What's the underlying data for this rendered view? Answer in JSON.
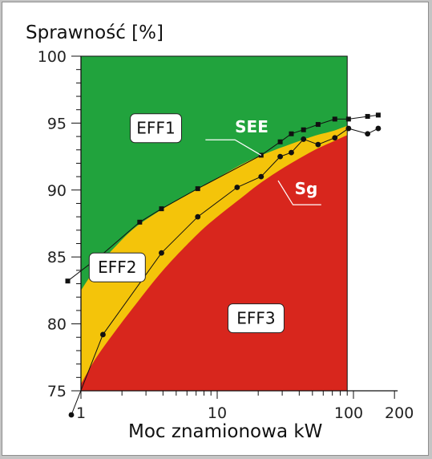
{
  "chart_data": {
    "type": "line",
    "ylabel": "Sprawność [%]",
    "xlabel": "Moc znamionowa kW",
    "xscale": "log",
    "xlim": [
      1,
      200
    ],
    "ylim": [
      75,
      100
    ],
    "x_ticks": [
      1,
      10,
      100,
      200
    ],
    "y_ticks": [
      75,
      80,
      85,
      90,
      95,
      100
    ],
    "colors": {
      "EFF1": "#21a33d",
      "EFF2": "#f4c40a",
      "EFF3": "#d8261d",
      "axis": "#111111",
      "series": "#111111"
    },
    "regions": [
      {
        "name": "EFF1"
      },
      {
        "name": "EFF2"
      },
      {
        "name": "EFF3"
      }
    ],
    "boundaries": {
      "eff1_eff2": {
        "x": [
          1.0,
          1.3,
          1.8,
          2.5,
          4,
          7,
          10,
          15,
          20,
          30,
          50,
          70,
          90
        ],
        "y": [
          82.5,
          84.2,
          85.8,
          87.2,
          88.6,
          90.0,
          90.9,
          91.9,
          92.5,
          93.2,
          94.0,
          94.4,
          94.8
        ]
      },
      "eff2_eff3": {
        "x": [
          1.0,
          1.3,
          1.8,
          2.5,
          4,
          7,
          10,
          15,
          20,
          30,
          50,
          70,
          90
        ],
        "y": [
          75.5,
          77.5,
          79.5,
          81.4,
          84.0,
          86.6,
          88.0,
          89.4,
          90.4,
          91.6,
          92.9,
          93.6,
          94.1
        ]
      }
    },
    "series": [
      {
        "name": "SEE",
        "marker": "square",
        "x": [
          0.8,
          1.4,
          2.7,
          3.9,
          7.2,
          21,
          29,
          35,
          43,
          55,
          73,
          92,
          127,
          152
        ],
        "y": [
          83.2,
          85.1,
          87.6,
          88.6,
          90.1,
          92.6,
          93.6,
          94.2,
          94.5,
          94.9,
          95.3,
          95.3,
          95.5,
          95.6
        ]
      },
      {
        "name": "Sg",
        "marker": "circle",
        "x": [
          0.85,
          1.45,
          3.9,
          7.2,
          14,
          21,
          29,
          35,
          43,
          55,
          73,
          92,
          127,
          152
        ],
        "y": [
          73.2,
          79.2,
          85.3,
          88.0,
          90.2,
          91.0,
          92.5,
          92.8,
          93.8,
          93.4,
          93.9,
          94.6,
          94.2,
          94.6
        ]
      }
    ]
  }
}
